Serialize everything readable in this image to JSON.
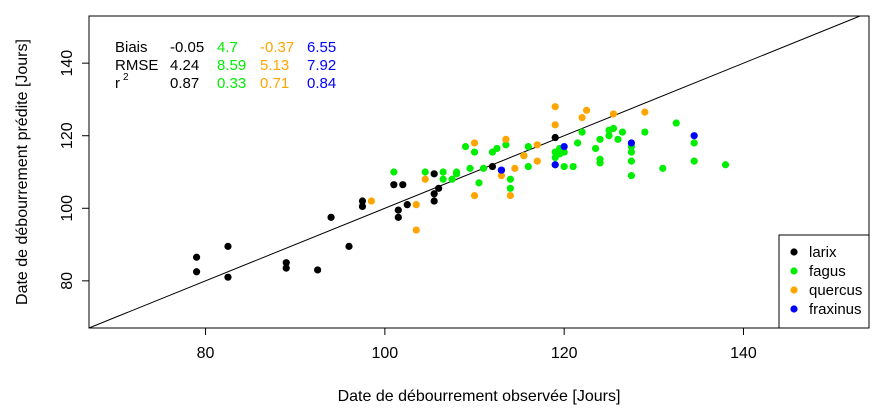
{
  "chart_data": {
    "type": "scatter",
    "xlabel": "Date de débourrement observée [Jours]",
    "ylabel": "Date de débourrement prédite [Jours]",
    "xlim": [
      67,
      154
    ],
    "ylim": [
      67,
      153
    ],
    "xticks": [
      80,
      100,
      120,
      140
    ],
    "yticks": [
      80,
      100,
      120,
      140
    ],
    "reference_line": "y = x",
    "grid": false,
    "legend_position": "bottom-right",
    "stats": {
      "row_labels": [
        "Biais",
        "RMSE",
        "r"
      ],
      "r_superscript": "2",
      "values": {
        "larix": [
          "-0.05",
          "4.24",
          "0.87"
        ],
        "fagus": [
          "4.7",
          "8.59",
          "0.33"
        ],
        "quercus": [
          "-0.37",
          "5.13",
          "0.71"
        ],
        "fraxinus": [
          "6.55",
          "7.92",
          "0.84"
        ]
      }
    },
    "series": [
      {
        "name": "larix",
        "color": "#000000",
        "points": [
          [
            79,
            82.5
          ],
          [
            79,
            86.5
          ],
          [
            82.5,
            81
          ],
          [
            82.5,
            89.5
          ],
          [
            89,
            83.5
          ],
          [
            89,
            85
          ],
          [
            92.5,
            83
          ],
          [
            94,
            97.5
          ],
          [
            96,
            89.5
          ],
          [
            97.5,
            100.5
          ],
          [
            97.5,
            102
          ],
          [
            101,
            106.5
          ],
          [
            101.5,
            97.5
          ],
          [
            101.5,
            99.5
          ],
          [
            102,
            106.5
          ],
          [
            102.5,
            101
          ],
          [
            105.5,
            102
          ],
          [
            105.5,
            104
          ],
          [
            105.5,
            109.5
          ],
          [
            106,
            105.5
          ],
          [
            112,
            111.5
          ],
          [
            113,
            110.5
          ],
          [
            119,
            119.5
          ]
        ]
      },
      {
        "name": "fagus",
        "color": "#00ee00",
        "points": [
          [
            101,
            110
          ],
          [
            104.5,
            110
          ],
          [
            106.5,
            108
          ],
          [
            106.5,
            110
          ],
          [
            107.5,
            108
          ],
          [
            108,
            109.5
          ],
          [
            108,
            110
          ],
          [
            109,
            117
          ],
          [
            109.5,
            111
          ],
          [
            110,
            115.5
          ],
          [
            110.5,
            107
          ],
          [
            111,
            111
          ],
          [
            112,
            115.5
          ],
          [
            112.5,
            116.5
          ],
          [
            113.5,
            117.5
          ],
          [
            114,
            105.5
          ],
          [
            114,
            108
          ],
          [
            115.5,
            114.5
          ],
          [
            116,
            117
          ],
          [
            116,
            111.5
          ],
          [
            119,
            112
          ],
          [
            119,
            114
          ],
          [
            119,
            115.5
          ],
          [
            119.5,
            116.5
          ],
          [
            119.5,
            115
          ],
          [
            120,
            111.5
          ],
          [
            120,
            115.5
          ],
          [
            121,
            111.5
          ],
          [
            121.5,
            118
          ],
          [
            122,
            121
          ],
          [
            123.5,
            116.5
          ],
          [
            124,
            112.5
          ],
          [
            124,
            119
          ],
          [
            124,
            113.5
          ],
          [
            125,
            120
          ],
          [
            125,
            121.5
          ],
          [
            125.5,
            122
          ],
          [
            126,
            119
          ],
          [
            126.5,
            121
          ],
          [
            127.5,
            115.5
          ],
          [
            127.5,
            117
          ],
          [
            127.5,
            113
          ],
          [
            127.5,
            109
          ],
          [
            129,
            121
          ],
          [
            131,
            111
          ],
          [
            132.5,
            123.5
          ],
          [
            134.5,
            118
          ],
          [
            134.5,
            113
          ],
          [
            138,
            112
          ]
        ]
      },
      {
        "name": "quercus",
        "color": "#ffa500",
        "points": [
          [
            98.5,
            102
          ],
          [
            103.5,
            94
          ],
          [
            103.5,
            101
          ],
          [
            104.5,
            108
          ],
          [
            110,
            118
          ],
          [
            110,
            103.5
          ],
          [
            113,
            109
          ],
          [
            113.5,
            119
          ],
          [
            114,
            103.5
          ],
          [
            114.5,
            111
          ],
          [
            115.5,
            114.5
          ],
          [
            117,
            117.5
          ],
          [
            117,
            113
          ],
          [
            119,
            128
          ],
          [
            119,
            123
          ],
          [
            122,
            125
          ],
          [
            122.5,
            127
          ],
          [
            125.5,
            126
          ],
          [
            129,
            126.5
          ]
        ]
      },
      {
        "name": "fraxinus",
        "color": "#0000ff",
        "points": [
          [
            113,
            110.5
          ],
          [
            119,
            112
          ],
          [
            120,
            117
          ],
          [
            127.5,
            118
          ],
          [
            134.5,
            120
          ]
        ]
      }
    ]
  }
}
